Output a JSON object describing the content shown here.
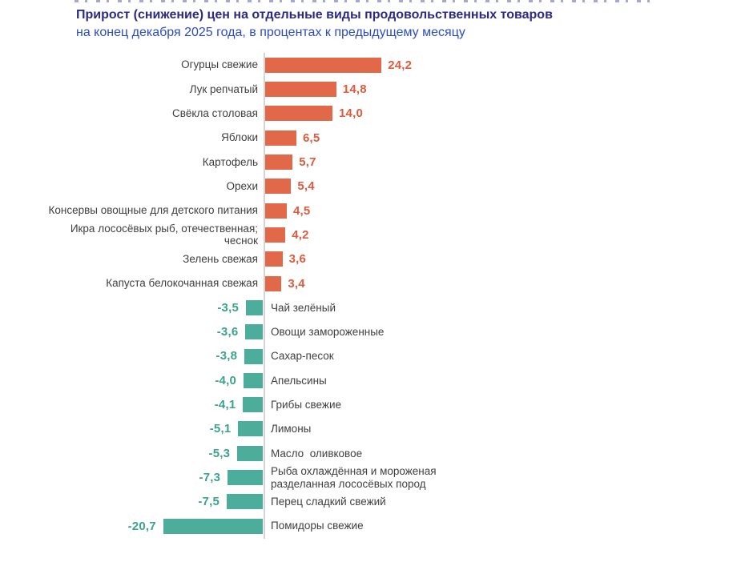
{
  "header": {
    "title": "Прирост (снижение) цен на отдельные виды продовольственных товаров",
    "subtitle": "на конец декабря 2025 года, в процентах к предыдущему месяцу"
  },
  "colors": {
    "positive_bar": "#e1694a",
    "negative_bar": "#4cad9a",
    "positive_value_text": "#de5b3e",
    "negative_value_text": "#3da28e",
    "axis_line": "#d4d4d4",
    "category_text": "#3f3f3f",
    "title_text": "#2b2a88",
    "subtitle_text": "#2b4cc4"
  },
  "chart_data": {
    "type": "bar",
    "orientation": "horizontal-diverging",
    "title": "Прирост (снижение) цен на отдельные виды продовольственных товаров",
    "subtitle": "на конец декабря 2025 года, в процентах к предыдущему месяцу",
    "value_unit": "проценты к предыдущему месяцу",
    "xlim": [
      -24,
      28
    ],
    "grid": false,
    "legend": false,
    "categories": [
      "Огурцы свежие",
      "Лук репчатый",
      "Свёкла столовая",
      "Яблоки",
      "Картофель",
      "Орехи",
      "Консервы овощные для детского питания",
      "Икра лососёвых рыб, отечественная; чеснок",
      "Зелень свежая",
      "Капуста белокочанная свежая",
      "Чай зелёный",
      "Овощи замороженные",
      "Сахар-песок",
      "Апельсины",
      "Грибы свежие",
      "Лимоны",
      "Масло оливковое",
      "Рыба охлаждённая и мороженая разделанная лососёвых пород",
      "Перец сладкий свежий",
      "Помидоры свежие"
    ],
    "values": [
      24.2,
      14.8,
      14.0,
      6.5,
      5.7,
      5.4,
      4.5,
      4.2,
      3.6,
      3.4,
      -3.5,
      -3.6,
      -3.8,
      -4.0,
      -4.1,
      -5.1,
      -5.3,
      -7.3,
      -7.5,
      -20.7
    ],
    "items": [
      {
        "label": "Огурцы свежие",
        "value": 24.2,
        "display": "24,2"
      },
      {
        "label": "Лук репчатый",
        "value": 14.8,
        "display": "14,8"
      },
      {
        "label": "Свёкла столовая",
        "value": 14.0,
        "display": "14,0"
      },
      {
        "label": "Яблоки",
        "value": 6.5,
        "display": "6,5"
      },
      {
        "label": "Картофель",
        "value": 5.7,
        "display": "5,7"
      },
      {
        "label": "Орехи",
        "value": 5.4,
        "display": "5,4"
      },
      {
        "label": "Консервы овощные для детского питания",
        "value": 4.5,
        "display": "4,5"
      },
      {
        "label": "Икра лососёвых рыб, отечественная;\nчеснок",
        "value": 4.2,
        "display": "4,2"
      },
      {
        "label": "Зелень свежая",
        "value": 3.6,
        "display": "3,6"
      },
      {
        "label": "Капуста белокочанная свежая",
        "value": 3.4,
        "display": "3,4"
      },
      {
        "label": "Чай зелёный",
        "value": -3.5,
        "display": "-3,5"
      },
      {
        "label": "Овощи замороженные",
        "value": -3.6,
        "display": "-3,6"
      },
      {
        "label": "Сахар-песок",
        "value": -3.8,
        "display": "-3,8"
      },
      {
        "label": "Апельсины",
        "value": -4.0,
        "display": "-4,0"
      },
      {
        "label": "Грибы свежие",
        "value": -4.1,
        "display": "-4,1"
      },
      {
        "label": "Лимоны",
        "value": -5.1,
        "display": "-5,1"
      },
      {
        "label": "Масло  оливковое",
        "value": -5.3,
        "display": "-5,3"
      },
      {
        "label": "Рыба охлаждённая  и мороженая\nразделанная лососёвых пород",
        "value": -7.3,
        "display": "-7,3"
      },
      {
        "label": "Перец сладкий свежий",
        "value": -7.5,
        "display": "-7,5"
      },
      {
        "label": "Помидоры свежие",
        "value": -20.7,
        "display": "-20,7"
      }
    ]
  }
}
